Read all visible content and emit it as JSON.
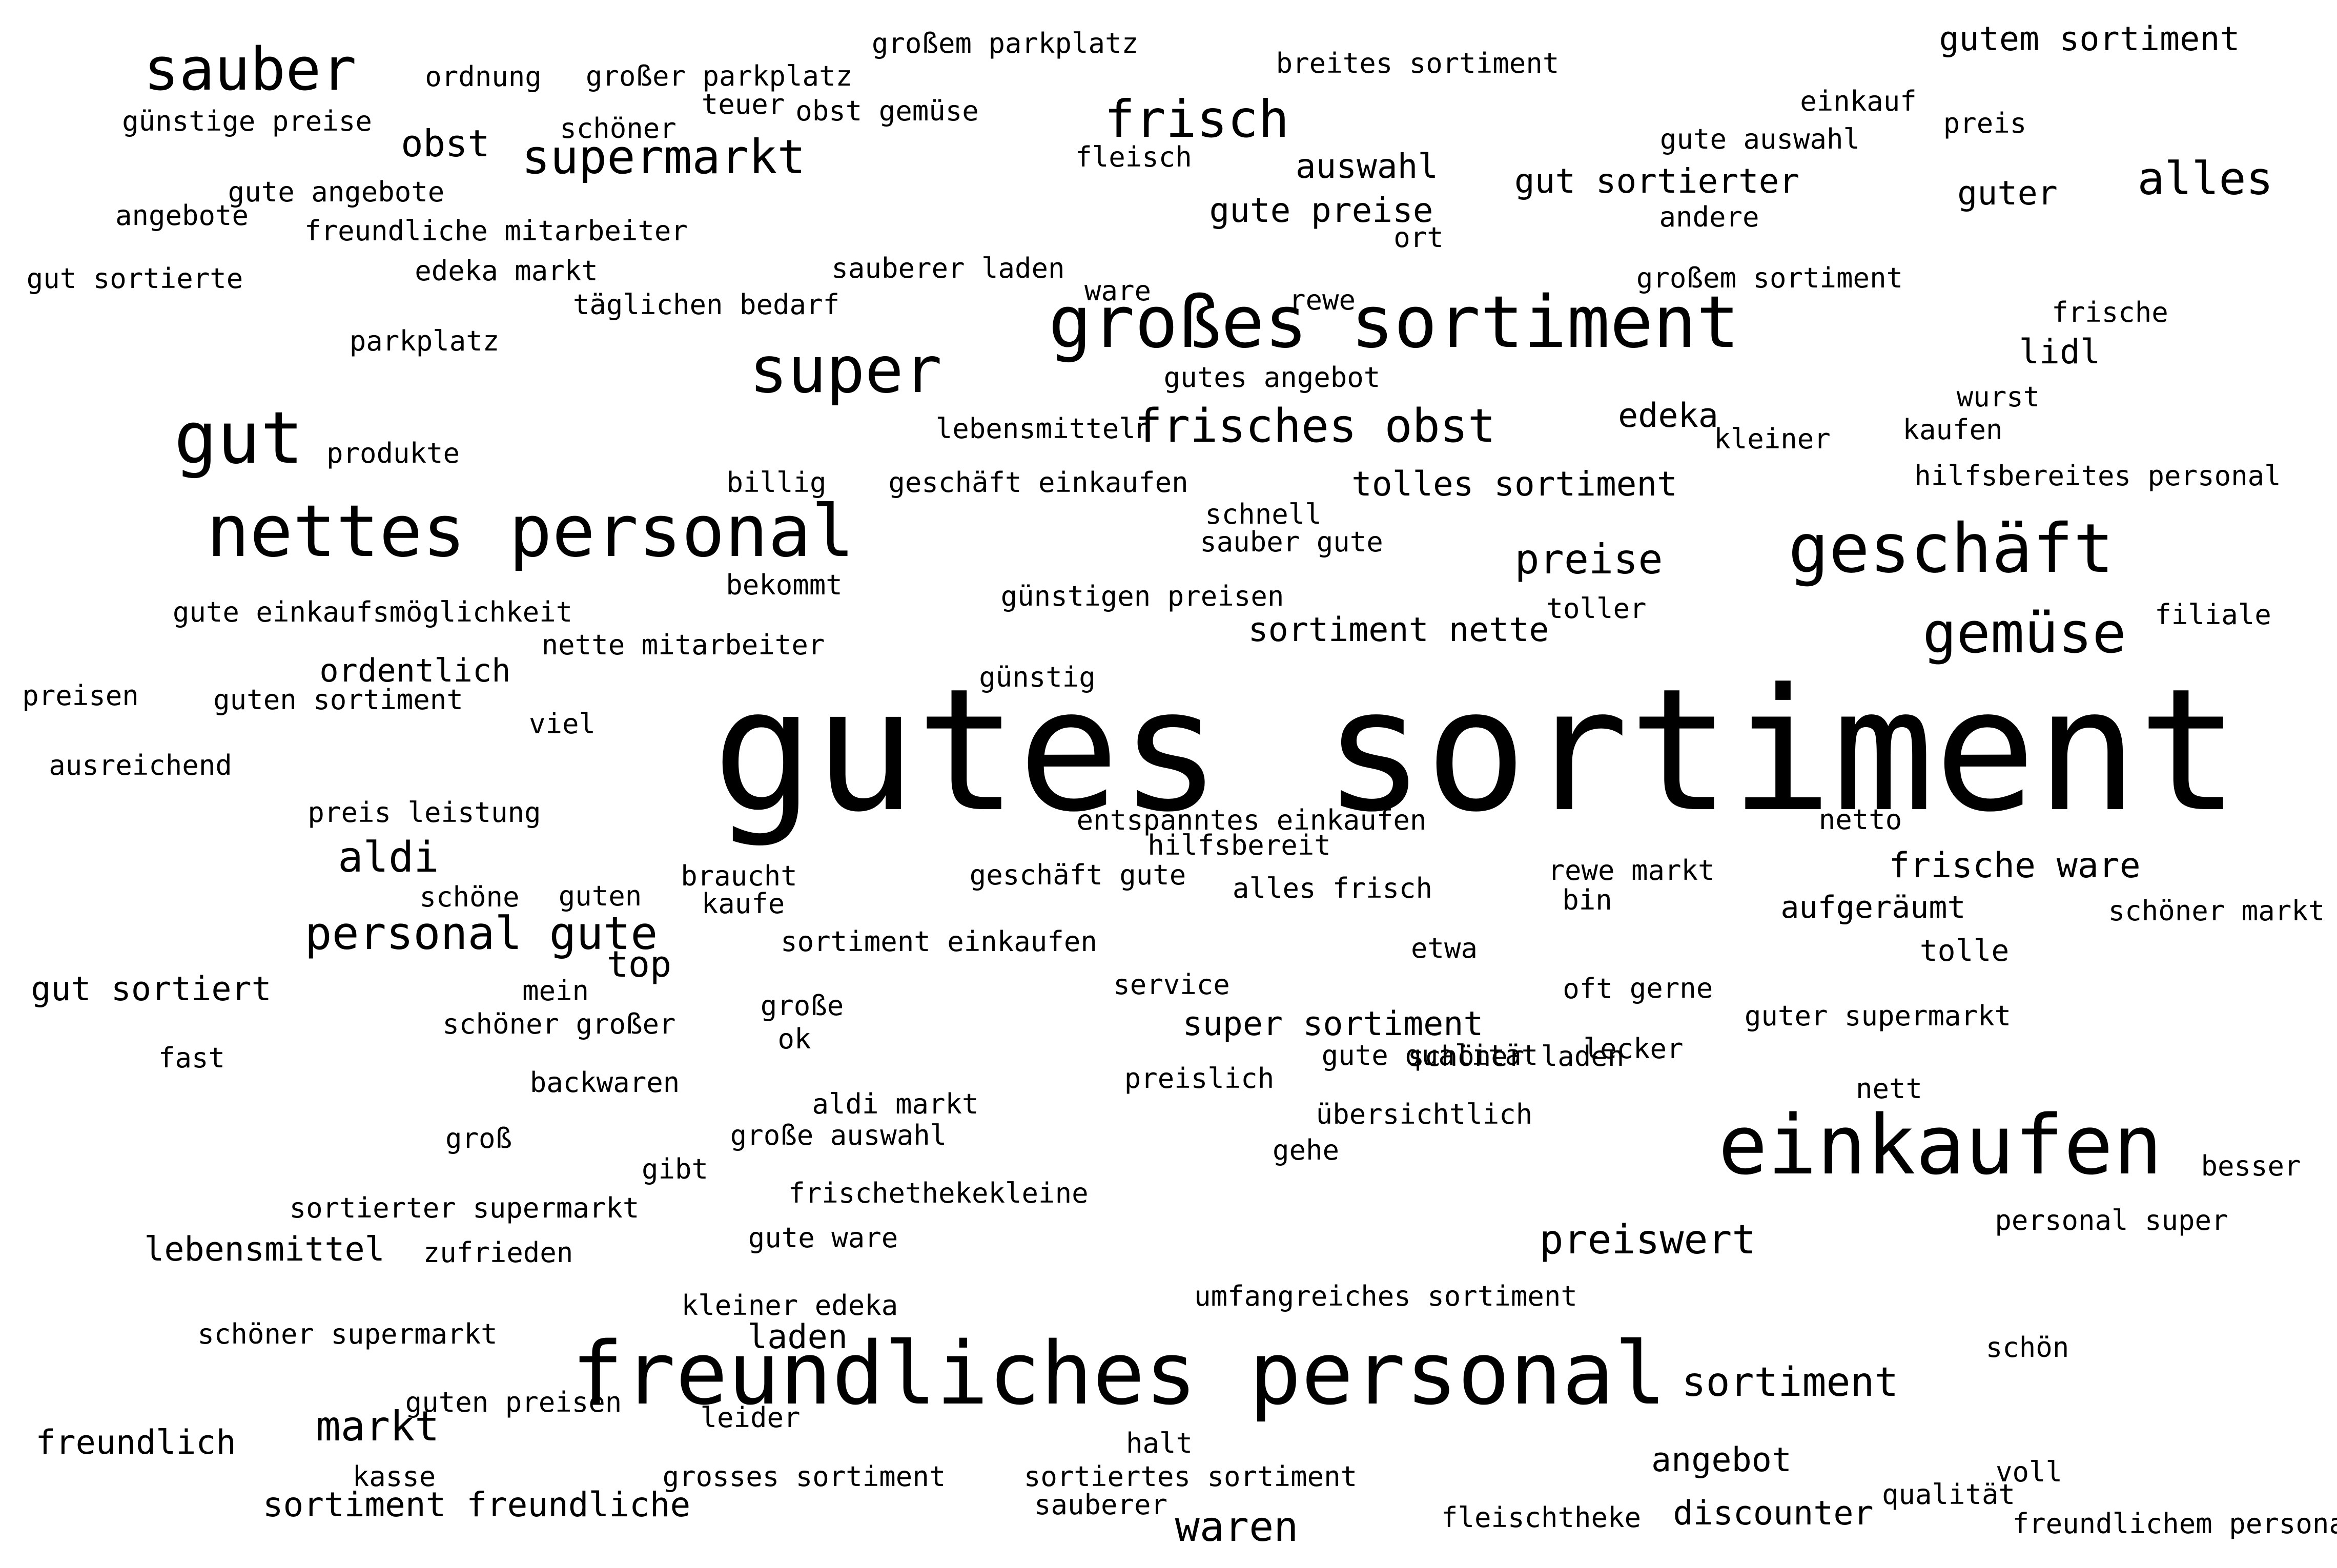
{
  "words": [
    "gutes sortiment",
    "freundliches personal",
    "großes sortiment",
    "nettes personal",
    "einkaufen",
    "geschäft",
    "gut",
    "super",
    "sauber",
    "frisch",
    "gemüse",
    "frisches obst",
    "supermarkt",
    "personal gute",
    "alles",
    "preise",
    "aldi",
    "obst",
    "markt",
    "sortiment",
    "waren",
    "preiswert",
    "frische ware",
    "super sortiment",
    "tolles sortiment",
    "gute preise",
    "gut sortierter",
    "auswahl",
    "lebensmittel",
    "sortiment freundliche",
    "gut sortiert",
    "freundlich",
    "discounter",
    "angebot",
    "lidl",
    "edeka",
    "gutem sortiment",
    "sortiment nette",
    "guter",
    "ordentlich",
    "aufgeräumt",
    "top",
    "tolle",
    "laden",
    "großem parkplatz",
    "großer parkplatz",
    "breites sortiment",
    "ordnung",
    "teuer",
    "obst gemüse",
    "schöner",
    "günstige preise",
    "einkauf",
    "preis",
    "gute auswahl",
    "fleisch",
    "gute angebote",
    "angebote",
    "freundliche mitarbeiter",
    "andere",
    "ort",
    "gut sortierte",
    "edeka markt",
    "sauberer laden",
    "ware",
    "rewe",
    "großem sortiment",
    "frische",
    "täglichen bedarf",
    "parkplatz",
    "gutes angebot",
    "wurst",
    "lebensmitteln",
    "kleiner",
    "kaufen",
    "produkte",
    "billig",
    "geschäft einkaufen",
    "hilfsbereites personal",
    "schnell",
    "sauber gute",
    "bekommt",
    "günstigen preisen",
    "toller",
    "filiale",
    "gute einkaufsmöglichkeit",
    "nette mitarbeiter",
    "günstig",
    "preisen",
    "guten sortiment",
    "viel",
    "ausreichend",
    "preis leistung",
    "entspanntes einkaufen",
    "netto",
    "hilfsbereit",
    "braucht",
    "geschäft gute",
    "rewe markt",
    "schöne",
    "guten",
    "kaufe",
    "alles frisch",
    "bin",
    "schöner markt",
    "sortiment einkaufen",
    "etwa",
    "service",
    "oft",
    "gerne",
    "mein",
    "große",
    "schöner großer",
    "ok",
    "guter supermarkt",
    "gute qualität",
    "schöner laden",
    "lecker",
    "fast",
    "preislich",
    "backwaren",
    "aldi markt",
    "nett",
    "übersichtlich",
    "groß",
    "große auswahl",
    "gehe",
    "besser",
    "gibt",
    "frischethekekleine",
    "sortierter supermarkt",
    "personal super",
    "gute ware",
    "zufrieden",
    "kleiner edeka",
    "umfangreiches sortiment",
    "schöner supermarkt",
    "schön",
    "guten preisen",
    "leider",
    "halt",
    "kasse",
    "grosses sortiment",
    "sortiertes sortiment",
    "voll",
    "sauberer",
    "qualität",
    "fleischtheke",
    "freundlichem personal"
  ]
}
